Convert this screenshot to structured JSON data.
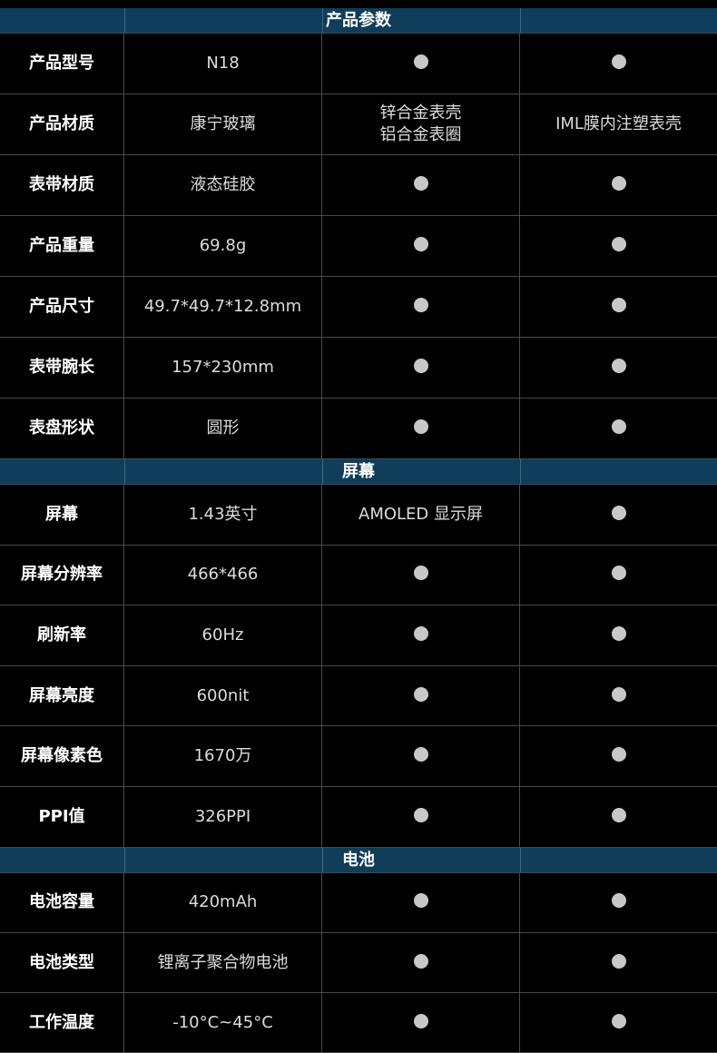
{
  "dot_icon": "filled-circle",
  "colors": {
    "section_header": "#0f3d5a",
    "dot": "#c8c8c8",
    "grid": "#4a4a4a"
  },
  "sections": [
    {
      "title": "产品参数",
      "rows": [
        {
          "label": "产品型号",
          "cells": [
            "N18",
            null,
            null
          ]
        },
        {
          "label": "产品材质",
          "cells": [
            "康宁玻璃",
            "锌合金表壳\n铝合金表圈",
            "IML膜内注塑表壳"
          ]
        },
        {
          "label": "表带材质",
          "cells": [
            "液态硅胶",
            null,
            null
          ]
        },
        {
          "label": "产品重量",
          "cells": [
            "69.8g",
            null,
            null
          ]
        },
        {
          "label": "产品尺寸",
          "cells": [
            "49.7*49.7*12.8mm",
            null,
            null
          ]
        },
        {
          "label": "表带腕长",
          "cells": [
            "157*230mm",
            null,
            null
          ]
        },
        {
          "label": "表盘形状",
          "cells": [
            "圆形",
            null,
            null
          ]
        }
      ]
    },
    {
      "title": "屏幕",
      "rows": [
        {
          "label": "屏幕",
          "cells": [
            "1.43英寸",
            "AMOLED 显示屏",
            null
          ]
        },
        {
          "label": "屏幕分辨率",
          "cells": [
            "466*466",
            null,
            null
          ]
        },
        {
          "label": "刷新率",
          "cells": [
            "60Hz",
            null,
            null
          ]
        },
        {
          "label": "屏幕亮度",
          "cells": [
            "600nit",
            null,
            null
          ]
        },
        {
          "label": "屏幕像素色",
          "cells": [
            "1670万",
            null,
            null
          ]
        },
        {
          "label": "PPI值",
          "cells": [
            "326PPI",
            null,
            null
          ]
        }
      ]
    },
    {
      "title": "电池",
      "rows": [
        {
          "label": "电池容量",
          "cells": [
            "420mAh",
            null,
            null
          ]
        },
        {
          "label": "电池类型",
          "cells": [
            "锂离子聚合物电池",
            null,
            null
          ]
        },
        {
          "label": "工作温度",
          "cells": [
            "-10°C~45°C",
            null,
            null
          ]
        }
      ]
    }
  ]
}
